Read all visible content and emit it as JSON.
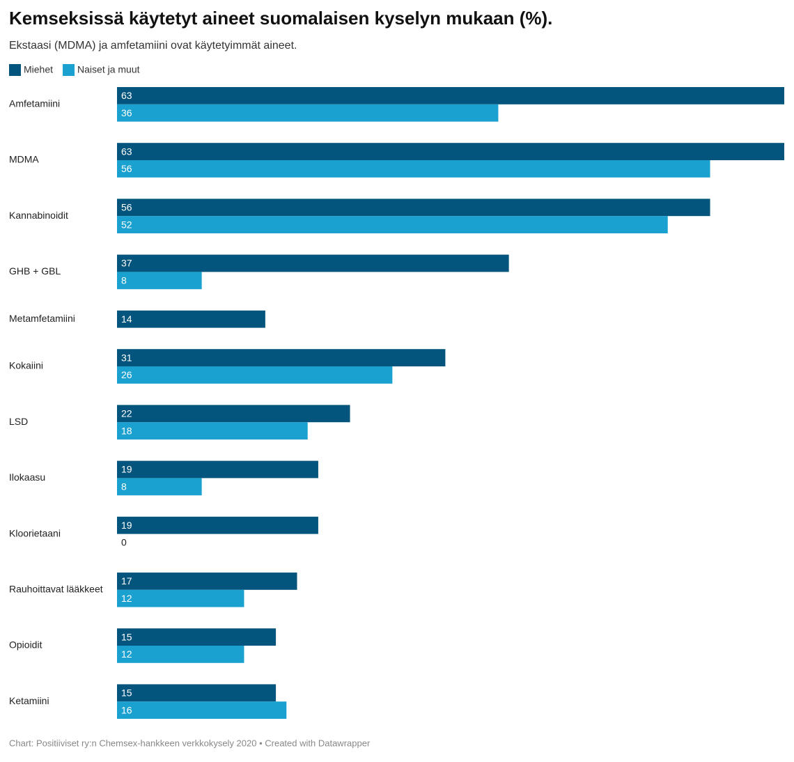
{
  "chart_data": {
    "type": "bar",
    "orientation": "horizontal",
    "title": "Kemseksissä käytetyt aineet suomalaisen kyselyn mukaan (%).",
    "subtitle": "Ekstaasi (MDMA) ja amfetamiini ovat käytetyimmät aineet.",
    "source": "Chart: Positiiviset ry:n Chemsex-hankkeen verkkokysely 2020 • Created with Datawrapper",
    "categories": [
      "Amfetamiini",
      "MDMA",
      "Kannabinoidit",
      "GHB + GBL",
      "Metamfetamiini",
      "Kokaiini",
      "LSD",
      "Ilokaasu",
      "Kloorietaani",
      "Rauhoittavat lääkkeet",
      "Opioidit",
      "Ketamiini"
    ],
    "series": [
      {
        "name": "Miehet",
        "color": "#03557d",
        "values": [
          63,
          63,
          56,
          37,
          14,
          31,
          22,
          19,
          19,
          17,
          15,
          15
        ]
      },
      {
        "name": "Naiset ja muut",
        "color": "#1ba1cf",
        "values": [
          36,
          56,
          52,
          8,
          null,
          26,
          18,
          8,
          0,
          12,
          12,
          16
        ]
      }
    ],
    "legend": "top-left"
  }
}
